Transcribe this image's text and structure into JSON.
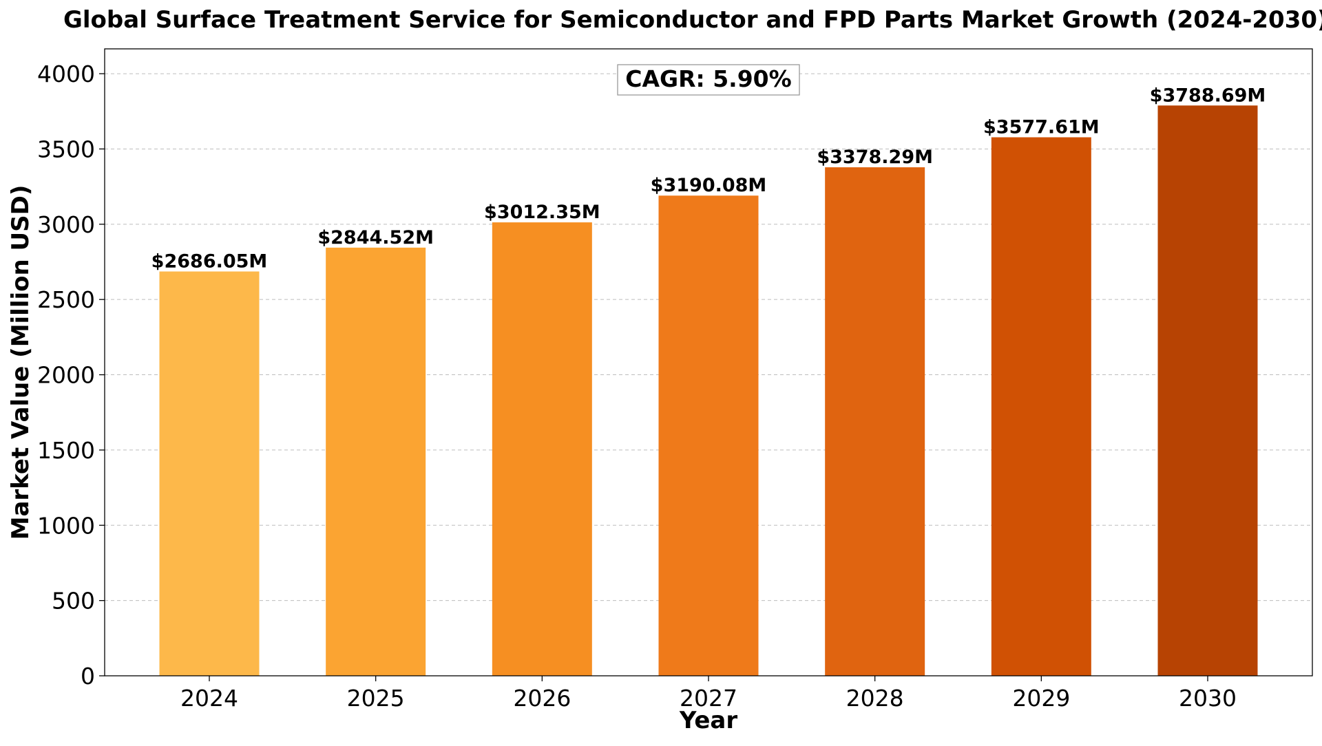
{
  "chart_data": {
    "type": "bar",
    "title": "Global Surface Treatment Service for Semiconductor and FPD Parts Market Growth (2024-2030)",
    "xlabel": "Year",
    "ylabel": "Market Value (Million USD)",
    "categories": [
      "2024",
      "2025",
      "2026",
      "2027",
      "2028",
      "2029",
      "2030"
    ],
    "values": [
      2686.05,
      2844.52,
      3012.35,
      3190.08,
      3378.29,
      3577.61,
      3788.69
    ],
    "data_labels": [
      "$2686.05M",
      "$2844.52M",
      "$3012.35M",
      "$3190.08M",
      "$3378.29M",
      "$3577.61M",
      "$3788.69M"
    ],
    "colors": [
      "#FDB84A",
      "#FBA432",
      "#F68F22",
      "#EF7A1A",
      "#E06410",
      "#D05104",
      "#B74303"
    ],
    "ylim": [
      0,
      4165
    ],
    "yticks": [
      0,
      500,
      1000,
      1500,
      2000,
      2500,
      3000,
      3500,
      4000
    ],
    "grid": true,
    "annotation": "CAGR: 5.90%"
  }
}
